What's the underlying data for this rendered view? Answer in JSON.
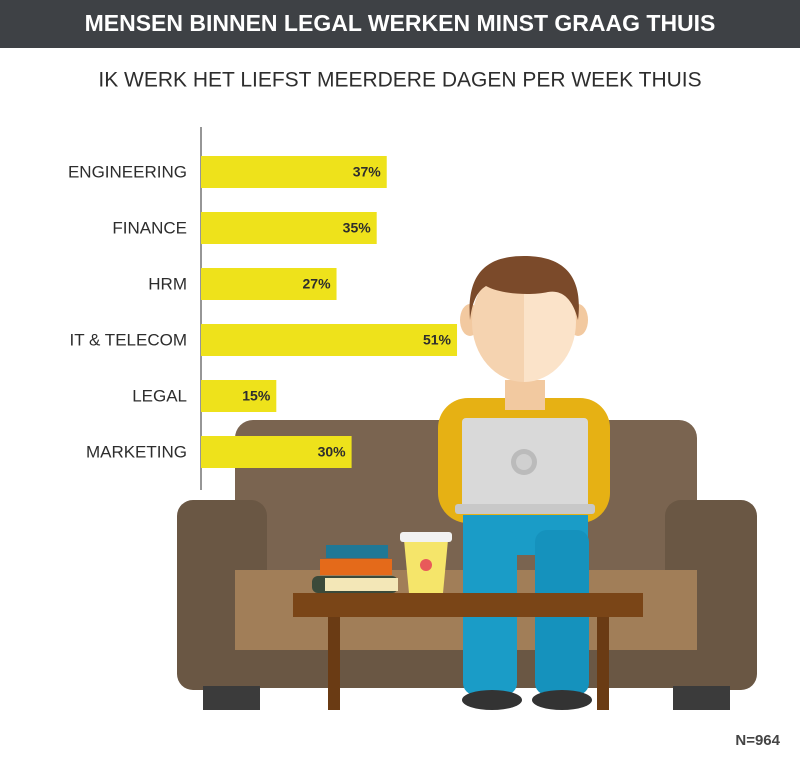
{
  "chart_data": {
    "type": "bar",
    "orientation": "horizontal",
    "title": "MENSEN BINNEN LEGAL WERKEN MINST GRAAG THUIS",
    "subtitle": "IK WERK HET LIEFST MEERDERE DAGEN PER WEEK THUIS",
    "categories": [
      "ENGINEERING",
      "FINANCE",
      "HRM",
      "IT & TELECOM",
      "LEGAL",
      "MARKETING"
    ],
    "values": [
      37,
      35,
      27,
      51,
      15,
      30
    ],
    "value_labels": [
      "37%",
      "35%",
      "27%",
      "51%",
      "15%",
      "30%"
    ],
    "color": "#eee21b",
    "note": "N=964"
  }
}
